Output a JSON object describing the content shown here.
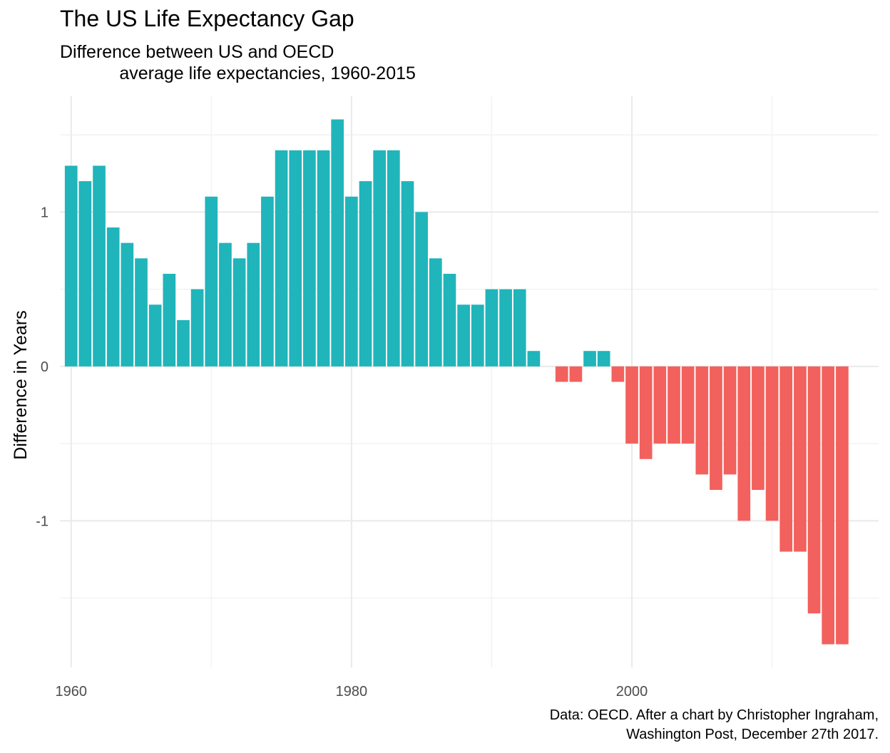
{
  "chart_data": {
    "type": "bar",
    "title": "The US Life Expectancy Gap",
    "subtitle": "Difference between US and OECD\n            average life expectancies, 1960-2015",
    "caption": "Data: OECD. After a chart by Christopher Ingraham,\nWashington Post, December 27th 2017.",
    "xlabel": "",
    "ylabel": "Difference in Years",
    "x": [
      1960,
      1961,
      1962,
      1963,
      1964,
      1965,
      1966,
      1967,
      1968,
      1969,
      1970,
      1971,
      1972,
      1973,
      1974,
      1975,
      1976,
      1977,
      1978,
      1979,
      1980,
      1981,
      1982,
      1983,
      1984,
      1985,
      1986,
      1987,
      1988,
      1989,
      1990,
      1991,
      1992,
      1993,
      1994,
      1995,
      1996,
      1997,
      1998,
      1999,
      2000,
      2001,
      2002,
      2003,
      2004,
      2005,
      2006,
      2007,
      2008,
      2009,
      2010,
      2011,
      2012,
      2013,
      2014,
      2015
    ],
    "values": [
      1.3,
      1.2,
      1.3,
      0.9,
      0.8,
      0.7,
      0.4,
      0.6,
      0.3,
      0.5,
      1.1,
      0.8,
      0.7,
      0.8,
      1.1,
      1.4,
      1.4,
      1.4,
      1.4,
      1.6,
      1.1,
      1.2,
      1.4,
      1.4,
      1.2,
      1.0,
      0.7,
      0.6,
      0.4,
      0.4,
      0.5,
      0.5,
      0.5,
      0.1,
      0.0,
      -0.1,
      -0.1,
      0.1,
      0.1,
      -0.1,
      -0.5,
      -0.6,
      -0.5,
      -0.5,
      -0.5,
      -0.7,
      -0.8,
      -0.7,
      -1.0,
      -0.8,
      -1.0,
      -1.2,
      -1.2,
      -1.6,
      -1.8,
      -1.8
    ],
    "xticks": [
      1960,
      1980,
      2000
    ],
    "yticks": [
      -1,
      0,
      1
    ],
    "xlim": [
      1959.2,
      2017.6
    ],
    "ylim": [
      -1.95,
      1.75
    ],
    "colors": {
      "positive": "#1FB5BA",
      "negative": "#F2615D",
      "grid_major": "#EBEBEB",
      "grid_minor": "#F2F2F2"
    },
    "grid": true,
    "legend": "none"
  }
}
